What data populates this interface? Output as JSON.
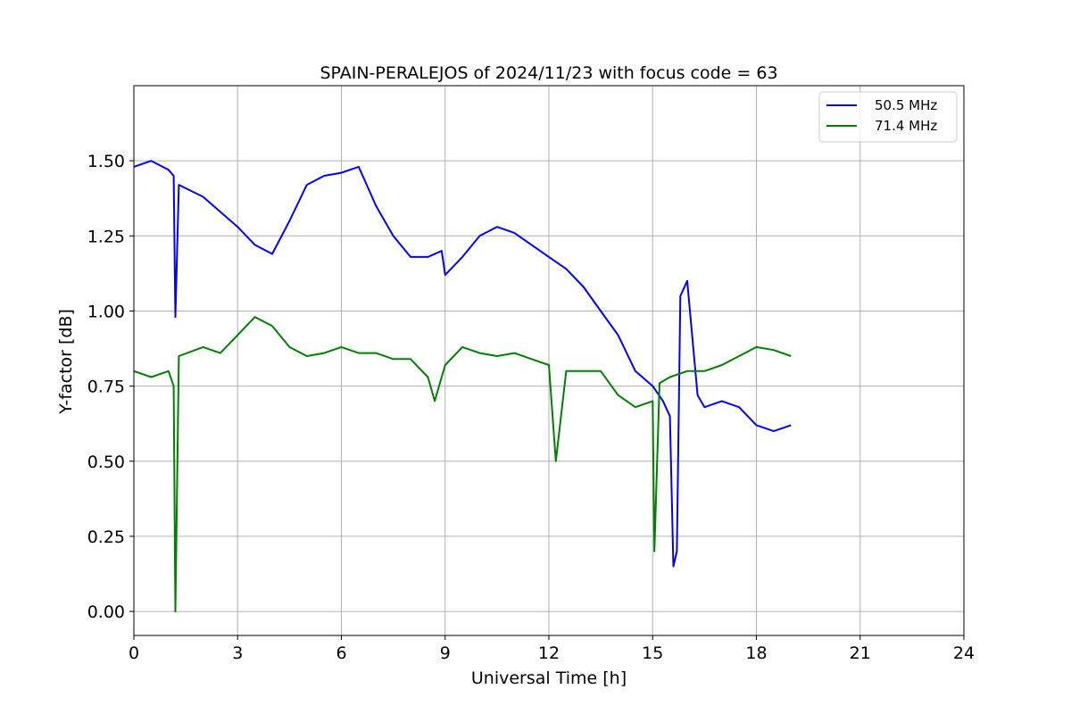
{
  "chart_data": {
    "type": "line",
    "title": "SPAIN-PERALEJOS of 2024/11/23 with focus code = 63",
    "xlabel": "Universal Time [h]",
    "ylabel": "Y-factor [dB]",
    "xlim": [
      0,
      24
    ],
    "ylim": [
      -0.08,
      1.75
    ],
    "xticks": [
      0,
      3,
      6,
      9,
      12,
      15,
      18,
      21,
      24
    ],
    "xtick_labels": [
      "0",
      "3",
      "6",
      "9",
      "12",
      "15",
      "18",
      "21",
      "24"
    ],
    "yticks": [
      0,
      0.25,
      0.5,
      0.75,
      1.0,
      1.25,
      1.5
    ],
    "ytick_labels": [
      "0.00",
      "0.25",
      "0.50",
      "0.75",
      "1.00",
      "1.25",
      "1.50"
    ],
    "grid": true,
    "legend_position": "top-right",
    "series": [
      {
        "name": "50.5 MHz",
        "color": "#0000ff",
        "x": [
          0,
          0.5,
          1.0,
          1.15,
          1.2,
          1.3,
          2.0,
          2.5,
          3.0,
          3.5,
          4.0,
          4.5,
          5.0,
          5.5,
          6.0,
          6.5,
          7.0,
          7.5,
          8.0,
          8.5,
          8.9,
          9.0,
          9.5,
          10.0,
          10.5,
          11.0,
          11.5,
          12.0,
          12.5,
          13.0,
          13.5,
          14.0,
          14.5,
          15.0,
          15.3,
          15.5,
          15.6,
          15.7,
          15.8,
          16.0,
          16.3,
          16.5,
          17.0,
          17.5,
          18.0,
          18.5,
          19.0
        ],
        "y": [
          1.48,
          1.5,
          1.47,
          1.45,
          0.98,
          1.42,
          1.38,
          1.33,
          1.28,
          1.22,
          1.19,
          1.3,
          1.42,
          1.45,
          1.46,
          1.48,
          1.35,
          1.25,
          1.18,
          1.18,
          1.2,
          1.12,
          1.18,
          1.25,
          1.28,
          1.26,
          1.22,
          1.18,
          1.14,
          1.08,
          1.0,
          0.92,
          0.8,
          0.75,
          0.7,
          0.65,
          0.15,
          0.2,
          1.05,
          1.1,
          0.72,
          0.68,
          0.7,
          0.68,
          0.62,
          0.6,
          0.62
        ]
      },
      {
        "name": "71.4 MHz",
        "color": "#008000",
        "x": [
          0,
          0.5,
          1.0,
          1.15,
          1.2,
          1.3,
          2.0,
          2.5,
          3.0,
          3.5,
          4.0,
          4.5,
          5.0,
          5.5,
          6.0,
          6.5,
          7.0,
          7.5,
          8.0,
          8.5,
          8.7,
          9.0,
          9.5,
          10.0,
          10.5,
          11.0,
          11.5,
          12.0,
          12.2,
          12.5,
          13.0,
          13.5,
          14.0,
          14.5,
          15.0,
          15.05,
          15.2,
          15.5,
          16.0,
          16.5,
          17.0,
          17.5,
          18.0,
          18.5,
          19.0
        ],
        "y": [
          0.8,
          0.78,
          0.8,
          0.75,
          0.0,
          0.85,
          0.88,
          0.86,
          0.92,
          0.98,
          0.95,
          0.88,
          0.85,
          0.86,
          0.88,
          0.86,
          0.86,
          0.84,
          0.84,
          0.78,
          0.7,
          0.82,
          0.88,
          0.86,
          0.85,
          0.86,
          0.84,
          0.82,
          0.5,
          0.8,
          0.8,
          0.8,
          0.72,
          0.68,
          0.7,
          0.2,
          0.76,
          0.78,
          0.8,
          0.8,
          0.82,
          0.85,
          0.88,
          0.87,
          0.85
        ]
      }
    ]
  }
}
